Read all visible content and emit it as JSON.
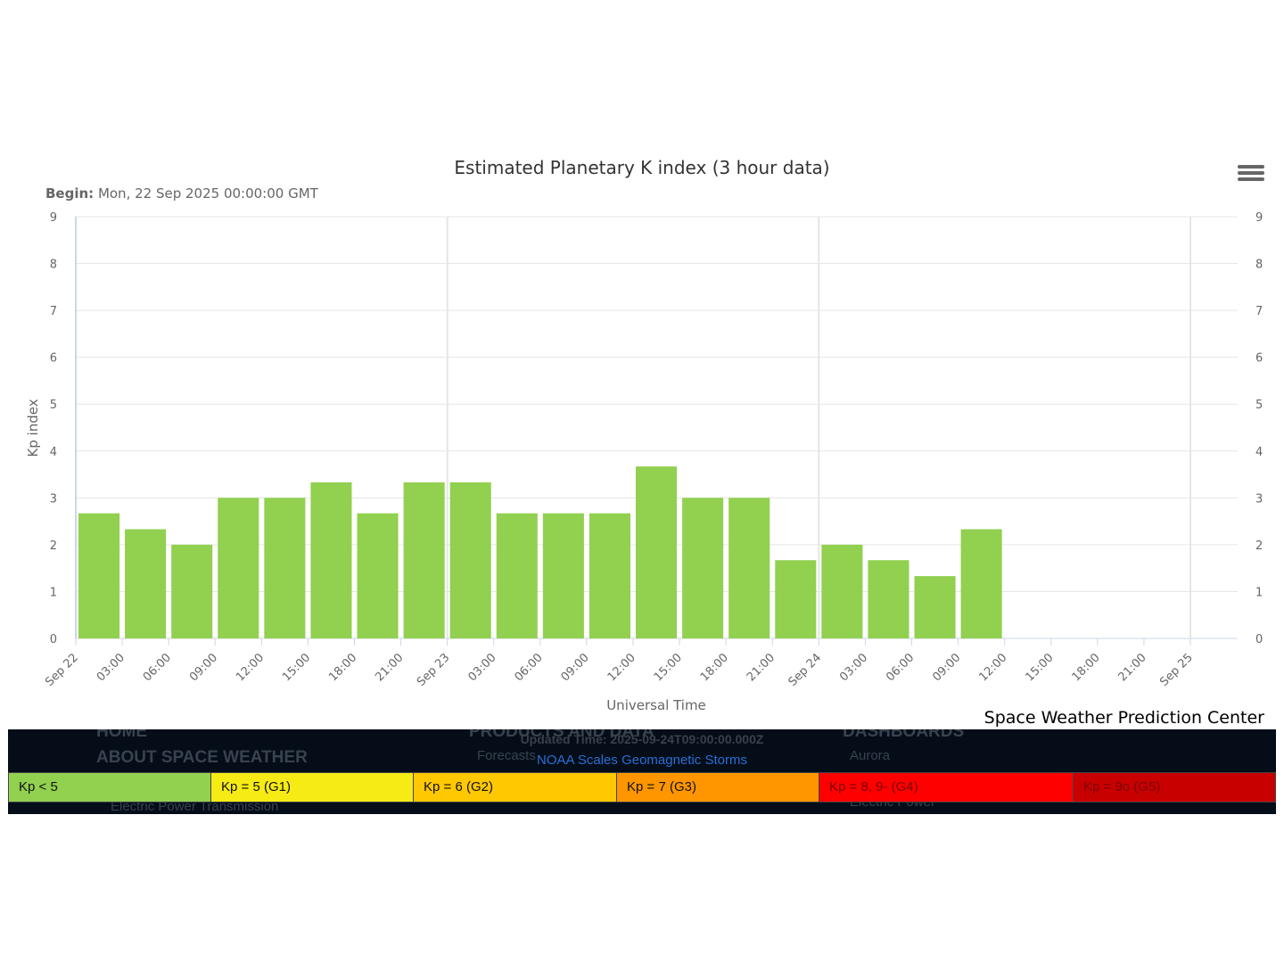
{
  "chart_data": {
    "type": "bar",
    "title": "Estimated Planetary K index (3 hour data)",
    "subtitle_label": "Begin:",
    "subtitle_value": "Mon, 22 Sep 2025 00:00:00 GMT",
    "xlabel": "Universal Time",
    "ylabel": "Kp index",
    "ylim": [
      0,
      9
    ],
    "y_ticks": [
      "0",
      "1",
      "2",
      "3",
      "4",
      "5",
      "6",
      "7",
      "8",
      "9"
    ],
    "x_tick_labels": [
      "Sep 22",
      "03:00",
      "06:00",
      "09:00",
      "12:00",
      "15:00",
      "18:00",
      "21:00",
      "Sep 23",
      "03:00",
      "06:00",
      "09:00",
      "12:00",
      "15:00",
      "18:00",
      "21:00",
      "Sep 24",
      "03:00",
      "06:00",
      "09:00",
      "12:00",
      "15:00",
      "18:00",
      "21:00",
      "Sep 25"
    ],
    "x_range_hours": [
      0,
      72
    ],
    "bar_period_hours": 3,
    "values": [
      2.67,
      2.33,
      2.0,
      3.0,
      3.0,
      3.33,
      2.67,
      3.33,
      3.33,
      2.67,
      2.67,
      2.67,
      3.67,
      3.0,
      3.0,
      1.67,
      2.0,
      1.67,
      1.33,
      2.33
    ],
    "bar_color": "#92d050",
    "grid": true,
    "legend": "none"
  },
  "credit": "Space Weather Prediction Center",
  "menu_icon": "hamburger-menu-icon",
  "footer": {
    "updated": "Updated Time: 2025-09-24T09:00:00.000Z",
    "noaa_link": "NOAA Scales Geomagnetic Storms",
    "scale": [
      {
        "label": "Kp < 5",
        "color": "#92d050"
      },
      {
        "label": "Kp = 5 (G1)",
        "color": "#f6eb14"
      },
      {
        "label": "Kp = 6 (G2)",
        "color": "#ffc800"
      },
      {
        "label": "Kp = 7 (G3)",
        "color": "#ff9600"
      },
      {
        "label": "Kp = 8, 9- (G4)",
        "color": "#ff0000"
      },
      {
        "label": "Kp = 9o (G5)",
        "color": "#c80000"
      }
    ],
    "background_links": {
      "home": "HOME",
      "about": "ABOUT SPACE WEATHER",
      "electric": "Electric Power Transmission",
      "products": "PRODUCTS AND DATA",
      "forecasts": "Forecasts",
      "dashboards": "DASHBOARDS",
      "aurora": "Aurora",
      "electric_power": "Electric Power"
    }
  }
}
